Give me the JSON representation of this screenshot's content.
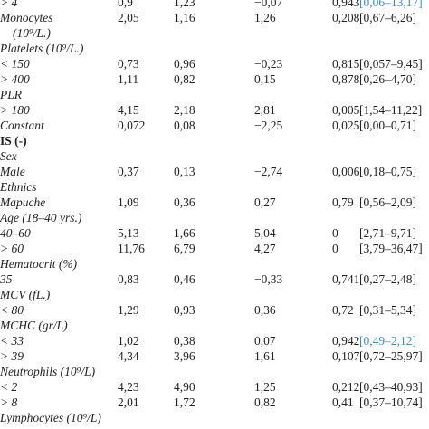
{
  "table": {
    "rows": [
      [
        "> 4",
        "0,9",
        "1,23",
        "−0,07",
        "0,943",
        "[0,06–13,17]"
      ],
      [
        "Monocytes",
        "2,05",
        "1,16",
        "1,26",
        "0,208",
        "[0,67–6,26]"
      ],
      [
        "(10⁹/L.)"
      ],
      [
        "Platelets (10⁹/L.)"
      ],
      [
        "< 150",
        "0,73",
        "0,96",
        "−0,23",
        "0,815",
        "[0,057–9,45]"
      ],
      [
        "> 400",
        "1,11",
        "0,82",
        "0,15",
        "0,878",
        "[0,26–4,70]"
      ],
      [
        "PLR"
      ],
      [
        "> 180",
        "4,15",
        "2,18",
        "2,81",
        "0,005",
        "[1,54–11,22]"
      ],
      [
        "Constant",
        "0,072",
        "0,08",
        "−2,25",
        "0,025",
        "[0,00–0,71]"
      ],
      [
        "IS (-)"
      ],
      [
        "Sex"
      ],
      [
        "Male",
        "0,37",
        "0,13",
        "−2,74",
        "0,006",
        "[0,18–0,75]"
      ],
      [
        "Ethnics"
      ],
      [
        "Mapuche",
        "1,09",
        "0,36",
        "0,27",
        "0,79",
        "[0,56–2,09]"
      ],
      [
        "Age (18–40 yrs.)"
      ],
      [
        "40–60",
        "5,13",
        "1,66",
        "5,04",
        "0",
        "[2,71–9,71]"
      ],
      [
        "> 60",
        "11,76",
        "6,79",
        "4,27",
        "0",
        "[3,79–36,47]"
      ],
      [
        "Hematocrit (%)"
      ],
      [
        "35",
        "0,83",
        "0,46",
        "−0,33",
        "0,741",
        "[0,27–2,48]"
      ],
      [
        "MCV (fL.)"
      ],
      [
        "< 80",
        "1,29",
        "0,93",
        "0,36",
        "0,72",
        "[0,31–5,34]"
      ],
      [
        "MCHC (gr/L)"
      ],
      [
        "< 33",
        "1,02",
        "0,38",
        "0,07",
        "0,942",
        "[0,49–2,12]"
      ],
      [
        "> 39",
        "4,34",
        "3,96",
        "1,61",
        "0,107",
        "[0,72–25,97]"
      ],
      [
        "Neutrophils (10⁹/L)"
      ],
      [
        "< 2",
        "4,23",
        "4,90",
        "1,25",
        "0,212",
        "[0,43–40,93]"
      ],
      [
        "> 8",
        "2,01",
        "1,72",
        "0,82",
        "0,41",
        "[0,37–10,74]"
      ],
      [
        "Lymphocytes (10⁹/L)"
      ]
    ]
  }
}
